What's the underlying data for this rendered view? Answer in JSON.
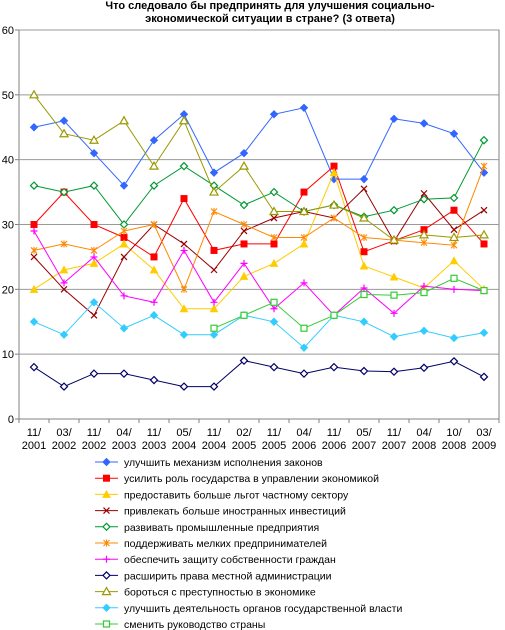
{
  "chart_data": {
    "type": "line",
    "title": [
      "Что следовало бы предпринять для  улучшения социально-",
      "экономической ситуации в стране? (3 ответа)"
    ],
    "x": [
      "11/ 2001",
      "03/ 2002",
      "11/ 2002",
      "04/ 2003",
      "11/ 2003",
      "05/ 2004",
      "11/ 2004",
      "02/ 2005",
      "11/ 2005",
      "04/ 2006",
      "11/ 2006",
      "05/ 2007",
      "11/ 2007",
      "04/ 2008",
      "10/ 2008",
      "03/ 2009"
    ],
    "ylim": [
      0,
      60
    ],
    "yticks": [
      0,
      10,
      20,
      30,
      40,
      50,
      60
    ],
    "grid": true,
    "legend_position": "bottom",
    "series": [
      {
        "name": "улучшить механизм исполнения законов",
        "color": "#3366ff",
        "marker": "diamond",
        "values": [
          45,
          46,
          41,
          36,
          43,
          47,
          38,
          41,
          47,
          48,
          37,
          37,
          46.3,
          45.6,
          44,
          38
        ]
      },
      {
        "name": "усилить роль государства в управлении экономикой",
        "color": "#ff0000",
        "marker": "square",
        "values": [
          30,
          35,
          30,
          28,
          25,
          34,
          26,
          27,
          27,
          35,
          39,
          25.8,
          27.5,
          29.2,
          32.2,
          27
        ]
      },
      {
        "name": "предоставить больше льгот частному сектору",
        "color": "#ffcc00",
        "marker": "triangle",
        "values": [
          20,
          23,
          24,
          27,
          23,
          17,
          17,
          22,
          24,
          27,
          38,
          23.6,
          21.9,
          20.2,
          24.4,
          20
        ]
      },
      {
        "name": "привлекать больше иностранных инвестиций",
        "color": "#990000",
        "marker": "x",
        "values": [
          25,
          20,
          16,
          25,
          30,
          27,
          23,
          29,
          31,
          32,
          31,
          35.5,
          27.4,
          34.8,
          29.2,
          32.2
        ]
      },
      {
        "name": "развивать промышленные предприятия",
        "color": "#009933",
        "marker": "diamond-open",
        "values": [
          36,
          35,
          36,
          30,
          36,
          39,
          36,
          33,
          35,
          32,
          33,
          31.2,
          32.2,
          33.9,
          34.1,
          43
        ]
      },
      {
        "name": "поддерживать мелких предпринимателей",
        "color": "#ff8800",
        "marker": "asterisk",
        "values": [
          26,
          27,
          26,
          29,
          30,
          20,
          32,
          30,
          28,
          28,
          31,
          28,
          27.6,
          27.2,
          26.8,
          39
        ]
      },
      {
        "name": "обеспечить защиту собственности граждан",
        "color": "#ff00ff",
        "marker": "plus",
        "values": [
          29,
          21,
          25,
          19,
          18,
          26,
          18,
          24,
          17,
          21,
          16,
          20.2,
          16.3,
          20.5,
          20,
          19.8
        ]
      },
      {
        "name": "расширить права местной администрации",
        "color": "#000066",
        "marker": "diamond-open",
        "values": [
          8,
          5,
          7,
          7,
          6,
          5,
          5,
          9,
          8,
          7,
          8,
          7.4,
          7.3,
          7.9,
          8.9,
          6.5
        ]
      },
      {
        "name": "бороться с преступностью в экономике",
        "color": "#999900",
        "marker": "triangle-open",
        "values": [
          50,
          44,
          43,
          46,
          39,
          46,
          35,
          39,
          32,
          32,
          33,
          31,
          27.6,
          28.4,
          28,
          28.4
        ]
      },
      {
        "name": "улучшить деятельность органов государственной власти",
        "color": "#33ccff",
        "marker": "diamond",
        "values": [
          15,
          13,
          18,
          14,
          16,
          13,
          13,
          16,
          15,
          11,
          16,
          15,
          12.7,
          13.6,
          12.5,
          13.3
        ]
      },
      {
        "name": "сменить руководство страны",
        "color": "#33cc33",
        "marker": "square-open",
        "values": [
          null,
          null,
          null,
          null,
          null,
          null,
          14,
          16,
          18,
          14,
          16,
          19.2,
          19.1,
          19.5,
          21.7,
          19.8
        ]
      }
    ]
  }
}
